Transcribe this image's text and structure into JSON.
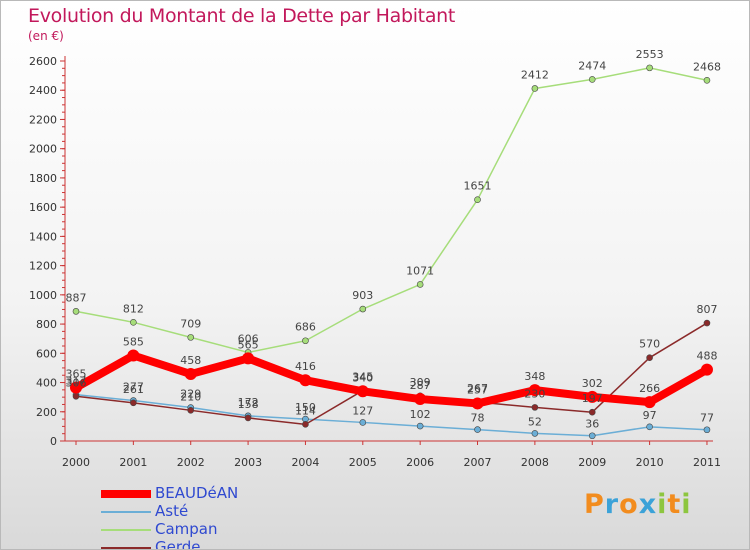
{
  "chart_data": {
    "type": "line",
    "title": "Evolution du Montant de la Dette par Habitant",
    "subtitle": "(en €)",
    "xlabel": "",
    "ylabel": "",
    "ylim": [
      0,
      2600
    ],
    "y_ticks": [
      0,
      200,
      400,
      600,
      800,
      1000,
      1200,
      1400,
      1600,
      1800,
      2000,
      2200,
      2400,
      2600
    ],
    "grid": false,
    "legend_position": "bottom-left",
    "categories": [
      "2000",
      "2001",
      "2002",
      "2003",
      "2004",
      "2005",
      "2006",
      "2007",
      "2008",
      "2009",
      "2010",
      "2011"
    ],
    "series": [
      {
        "name": "BEAUDéAN",
        "color": "#ff0000",
        "values": [
          365,
          585,
          458,
          565,
          416,
          340,
          287,
          257,
          348,
          302,
          266,
          488
        ]
      },
      {
        "name": "Asté",
        "color": "#6baed6",
        "values": [
          317,
          277,
          229,
          172,
          150,
          127,
          102,
          78,
          52,
          36,
          97,
          77
        ]
      },
      {
        "name": "Campan",
        "color": "#a6dd7a",
        "values": [
          887,
          812,
          709,
          606,
          686,
          903,
          1071,
          1651,
          2412,
          2474,
          2553,
          2468
        ]
      },
      {
        "name": "Gerde",
        "color": "#8b2a2a",
        "values": [
          306,
          261,
          210,
          158,
          114,
          345,
          309,
          267,
          230,
          197,
          570,
          807
        ]
      }
    ]
  },
  "logo": {
    "letters": [
      "P",
      "r",
      "o",
      "x",
      "i",
      "t",
      "i"
    ],
    "colors": [
      "#f28c1e",
      "#3ba2d8",
      "#f28c1e",
      "#3ba2d8",
      "#8dc63f",
      "#f28c1e",
      "#8dc63f"
    ]
  }
}
